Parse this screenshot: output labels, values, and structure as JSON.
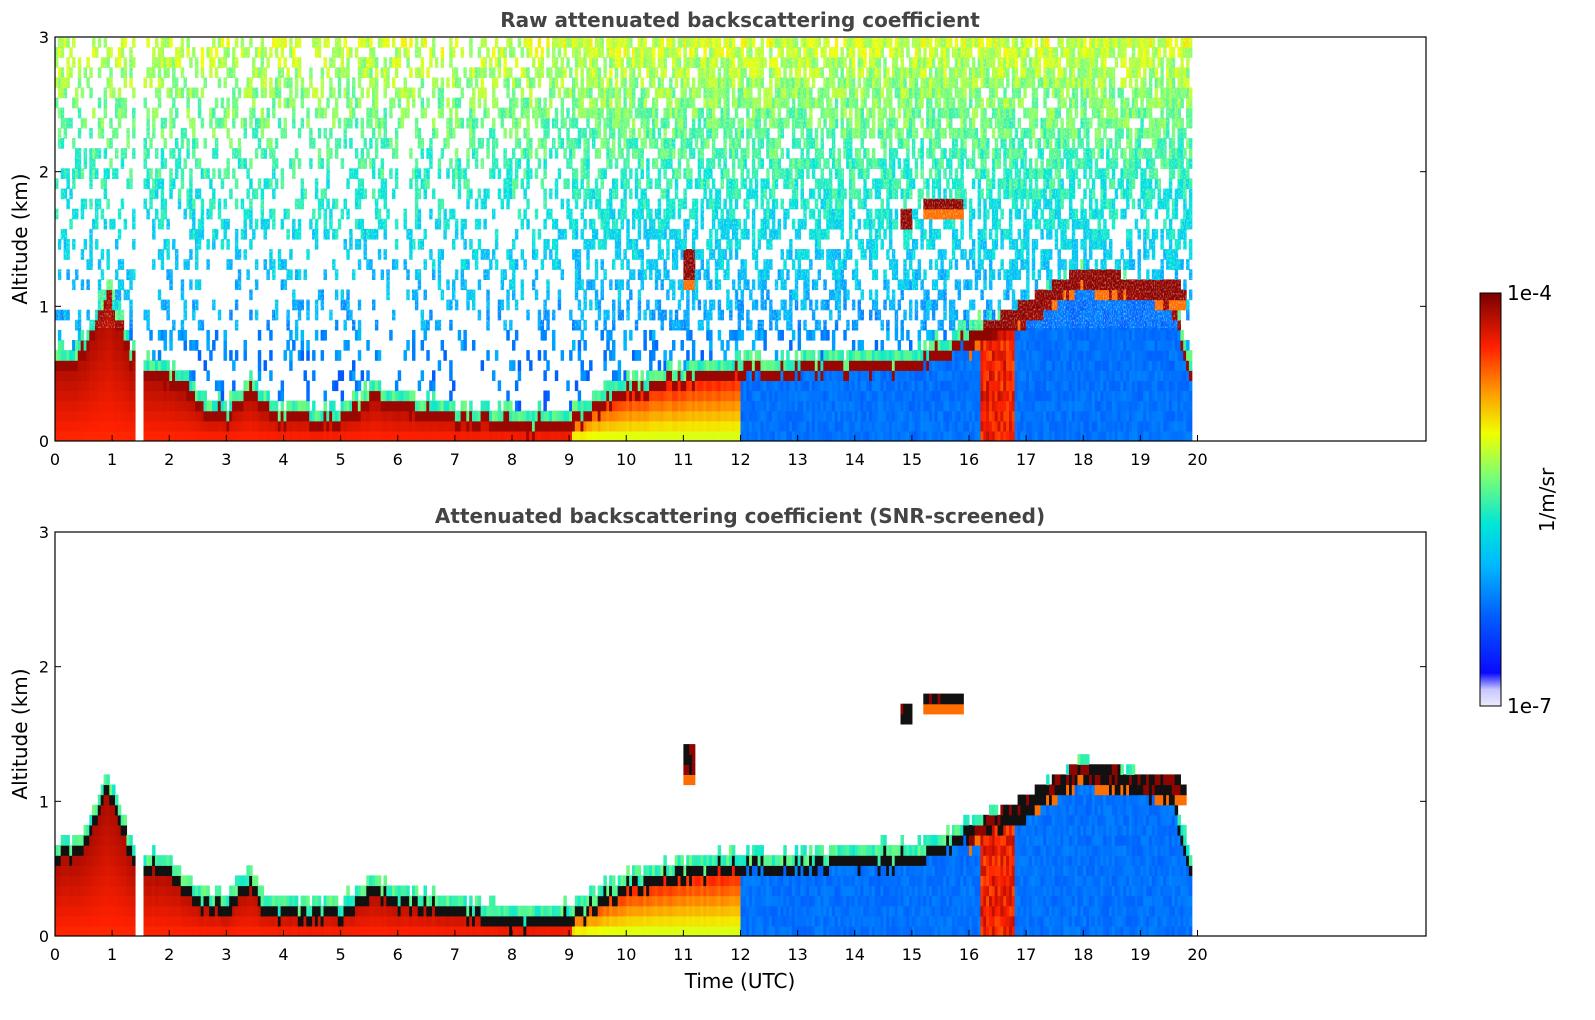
{
  "chart_data": [
    {
      "type": "heatmap",
      "title": "Raw attenuated backscattering coefficient",
      "xlabel": "",
      "ylabel": "Altitude (km)",
      "xlim": [
        0,
        24
      ],
      "ylim": [
        0,
        3
      ],
      "x_ticks": [
        "0",
        "1",
        "2",
        "3",
        "4",
        "5",
        "6",
        "7",
        "8",
        "9",
        "10",
        "11",
        "12",
        "13",
        "14",
        "15",
        "16",
        "17",
        "18",
        "19",
        "20"
      ],
      "y_ticks": [
        "0",
        "1",
        "2",
        "3"
      ],
      "data_extent_hours": [
        0,
        19.9
      ],
      "data_gaps_hours": [
        [
          1.4,
          1.55
        ]
      ],
      "features": {
        "boundary_layer_top_km": [
          [
            0,
            0.6
          ],
          [
            0.5,
            0.7
          ],
          [
            0.9,
            1.15
          ],
          [
            1.3,
            0.65
          ],
          [
            1.6,
            0.55
          ],
          [
            2,
            0.5
          ],
          [
            2.5,
            0.3
          ],
          [
            3,
            0.22
          ],
          [
            3.4,
            0.45
          ],
          [
            3.6,
            0.25
          ],
          [
            4,
            0.2
          ],
          [
            5,
            0.2
          ],
          [
            5.5,
            0.35
          ],
          [
            6,
            0.3
          ],
          [
            7,
            0.2
          ],
          [
            8,
            0.15
          ],
          [
            9,
            0.15
          ],
          [
            9.5,
            0.3
          ],
          [
            10,
            0.4
          ],
          [
            11,
            0.5
          ],
          [
            12,
            0.55
          ],
          [
            13,
            0.55
          ],
          [
            14,
            0.6
          ],
          [
            15,
            0.6
          ],
          [
            16,
            0.8
          ],
          [
            17,
            0.95
          ],
          [
            18,
            1.25
          ],
          [
            18.5,
            1.15
          ],
          [
            19.5,
            1.1
          ],
          [
            19.9,
            0.5
          ]
        ],
        "cloud_layers": [
          {
            "x": [
              15.2,
              15.9
            ],
            "altitude_km": 1.8
          },
          {
            "x": [
              14.8,
              15.0
            ],
            "altitude_km": 1.65
          },
          {
            "x": [
              11.0,
              11.2
            ],
            "altitude_km": 1.3
          },
          {
            "x": [
              16.0,
              18.0
            ],
            "altitude_km": "0.75-1.25"
          },
          {
            "x": [
              18.0,
              19.8
            ],
            "altitude_km": "1.1-1.25"
          }
        ],
        "precipitation_shaft_hours": [
          16.2,
          16.8
        ]
      }
    },
    {
      "type": "heatmap",
      "title": "Attenuated backscattering coefficient (SNR-screened)",
      "xlabel": "Time (UTC)",
      "ylabel": "Altitude (km)",
      "xlim": [
        0,
        24
      ],
      "ylim": [
        0,
        3
      ],
      "x_ticks": [
        "0",
        "1",
        "2",
        "3",
        "4",
        "5",
        "6",
        "7",
        "8",
        "9",
        "10",
        "11",
        "12",
        "13",
        "14",
        "15",
        "16",
        "17",
        "18",
        "19",
        "20"
      ],
      "y_ticks": [
        "0",
        "1",
        "2",
        "3"
      ],
      "data_extent_hours": [
        0,
        19.9
      ],
      "data_gaps_hours": [
        [
          1.4,
          1.55
        ]
      ],
      "note_values": "same field as the raw panel with noisy pixels (low SNR) removed; black pixels mark detected layer/cloud tops"
    }
  ],
  "colorbar": {
    "label": "1/m/sr",
    "max_label": "1e-4",
    "min_label": "1e-7",
    "scale": "log",
    "range": [
      1e-07,
      0.0001
    ],
    "colors": [
      "#e8e8f8",
      "#0000ff",
      "#00a0ff",
      "#00e0e0",
      "#80ff80",
      "#ffff00",
      "#ff8000",
      "#ff0000",
      "#800000"
    ]
  }
}
